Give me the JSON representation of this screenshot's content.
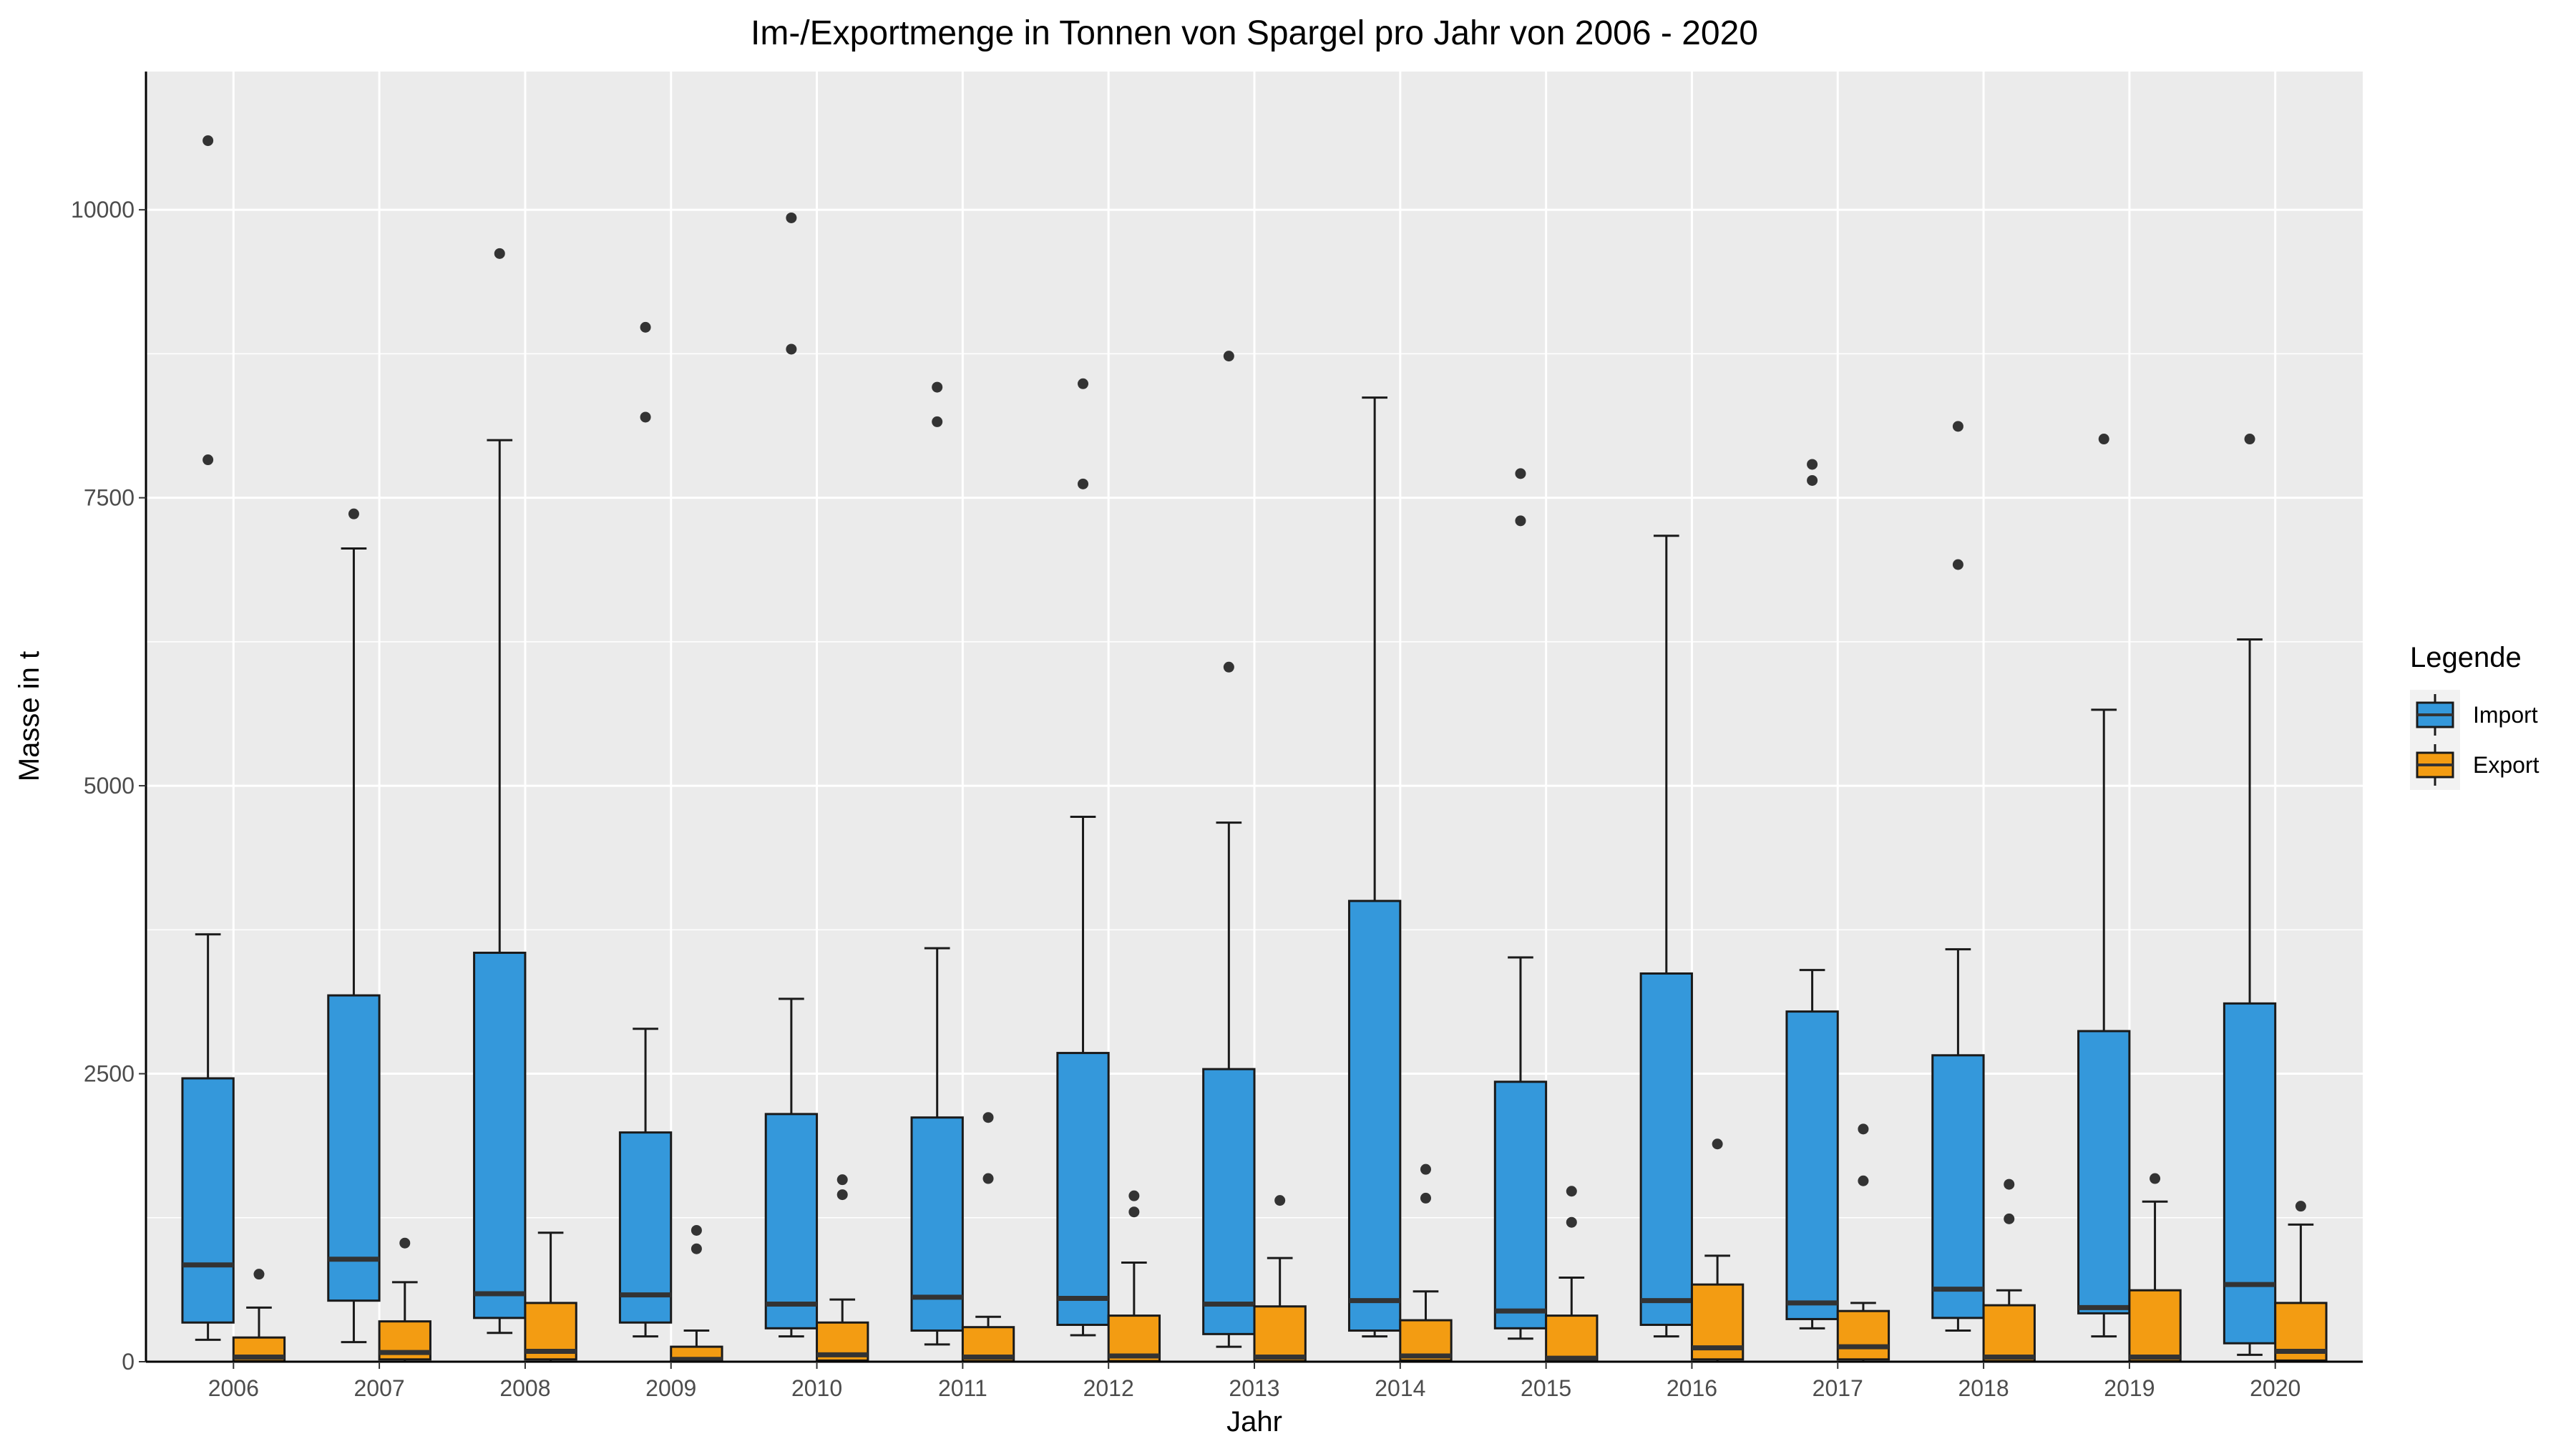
{
  "chart_data": {
    "type": "boxplot",
    "title": "Im-/Exportmenge in Tonnen von Spargel pro Jahr von 2006 - 2020",
    "xlabel": "Jahr",
    "ylabel": "Masse in t",
    "ylim": [
      0,
      11200
    ],
    "yticks": [
      0,
      2500,
      5000,
      7500,
      10000
    ],
    "ytick_labels": [
      "0",
      "2500",
      "5000",
      "7500",
      "10000"
    ],
    "grid": true,
    "panel_background": "#ebebeb",
    "legend": {
      "title": "Legende",
      "position": "right",
      "entries": [
        {
          "label": "Import",
          "color": "#3498db"
        },
        {
          "label": "Export",
          "color": "#f39c12"
        }
      ]
    },
    "categories": [
      "2006",
      "2007",
      "2008",
      "2009",
      "2010",
      "2011",
      "2012",
      "2013",
      "2014",
      "2015",
      "2016",
      "2017",
      "2018",
      "2019",
      "2020"
    ],
    "series": [
      {
        "name": "Import",
        "color": "#3498db",
        "boxes": [
          {
            "whisker_low": 190,
            "q1": 340,
            "median": 840,
            "q3": 2460,
            "whisker_high": 3710,
            "outliers": [
              7830,
              10600
            ]
          },
          {
            "whisker_low": 170,
            "q1": 530,
            "median": 890,
            "q3": 3180,
            "whisker_high": 7060,
            "outliers": [
              7360
            ]
          },
          {
            "whisker_low": 250,
            "q1": 380,
            "median": 590,
            "q3": 3550,
            "whisker_high": 8000,
            "outliers": [
              9620
            ]
          },
          {
            "whisker_low": 220,
            "q1": 340,
            "median": 580,
            "q3": 1990,
            "whisker_high": 2890,
            "outliers": [
              8200,
              8980
            ]
          },
          {
            "whisker_low": 220,
            "q1": 290,
            "median": 500,
            "q3": 2150,
            "whisker_high": 3150,
            "outliers": [
              8790,
              9930
            ]
          },
          {
            "whisker_low": 150,
            "q1": 270,
            "median": 560,
            "q3": 2120,
            "whisker_high": 3590,
            "outliers": [
              8160,
              8460
            ]
          },
          {
            "whisker_low": 230,
            "q1": 320,
            "median": 550,
            "q3": 2680,
            "whisker_high": 4730,
            "outliers": [
              7620,
              8490
            ]
          },
          {
            "whisker_low": 130,
            "q1": 240,
            "median": 500,
            "q3": 2540,
            "whisker_high": 4680,
            "outliers": [
              6030,
              8730
            ]
          },
          {
            "whisker_low": 220,
            "q1": 270,
            "median": 530,
            "q3": 4000,
            "whisker_high": 8370,
            "outliers": []
          },
          {
            "whisker_low": 200,
            "q1": 290,
            "median": 440,
            "q3": 2430,
            "whisker_high": 3510,
            "outliers": [
              7300,
              7710
            ]
          },
          {
            "whisker_low": 220,
            "q1": 320,
            "median": 530,
            "q3": 3370,
            "whisker_high": 7170,
            "outliers": []
          },
          {
            "whisker_low": 290,
            "q1": 370,
            "median": 510,
            "q3": 3040,
            "whisker_high": 3400,
            "outliers": [
              7650,
              7790
            ]
          },
          {
            "whisker_low": 270,
            "q1": 380,
            "median": 630,
            "q3": 2660,
            "whisker_high": 3580,
            "outliers": [
              6920,
              8120
            ]
          },
          {
            "whisker_low": 220,
            "q1": 420,
            "median": 470,
            "q3": 2870,
            "whisker_high": 5660,
            "outliers": [
              8010
            ]
          },
          {
            "whisker_low": 60,
            "q1": 160,
            "median": 670,
            "q3": 3110,
            "whisker_high": 6270,
            "outliers": [
              8010
            ]
          }
        ]
      },
      {
        "name": "Export",
        "color": "#f39c12",
        "boxes": [
          {
            "whisker_low": 0,
            "q1": 5,
            "median": 40,
            "q3": 210,
            "whisker_high": 470,
            "outliers": [
              760
            ]
          },
          {
            "whisker_low": 0,
            "q1": 20,
            "median": 80,
            "q3": 350,
            "whisker_high": 690,
            "outliers": [
              1030
            ]
          },
          {
            "whisker_low": 0,
            "q1": 20,
            "median": 90,
            "q3": 510,
            "whisker_high": 1120,
            "outliers": []
          },
          {
            "whisker_low": 0,
            "q1": 5,
            "median": 20,
            "q3": 130,
            "whisker_high": 270,
            "outliers": [
              980,
              1140
            ]
          },
          {
            "whisker_low": 0,
            "q1": 10,
            "median": 60,
            "q3": 340,
            "whisker_high": 540,
            "outliers": [
              1450,
              1580
            ]
          },
          {
            "whisker_low": 0,
            "q1": 5,
            "median": 40,
            "q3": 300,
            "whisker_high": 390,
            "outliers": [
              1590,
              2120
            ]
          },
          {
            "whisker_low": 0,
            "q1": 5,
            "median": 50,
            "q3": 400,
            "whisker_high": 860,
            "outliers": [
              1300,
              1440
            ]
          },
          {
            "whisker_low": 0,
            "q1": 5,
            "median": 40,
            "q3": 480,
            "whisker_high": 900,
            "outliers": [
              1400
            ]
          },
          {
            "whisker_low": 0,
            "q1": 10,
            "median": 50,
            "q3": 360,
            "whisker_high": 610,
            "outliers": [
              1420,
              1670
            ]
          },
          {
            "whisker_low": 0,
            "q1": 5,
            "median": 30,
            "q3": 400,
            "whisker_high": 730,
            "outliers": [
              1210,
              1480
            ]
          },
          {
            "whisker_low": 0,
            "q1": 20,
            "median": 120,
            "q3": 670,
            "whisker_high": 920,
            "outliers": [
              1890
            ]
          },
          {
            "whisker_low": 0,
            "q1": 20,
            "median": 130,
            "q3": 440,
            "whisker_high": 510,
            "outliers": [
              1570,
              2020
            ]
          },
          {
            "whisker_low": 0,
            "q1": 5,
            "median": 40,
            "q3": 490,
            "whisker_high": 620,
            "outliers": [
              1240,
              1540
            ]
          },
          {
            "whisker_low": 0,
            "q1": 5,
            "median": 40,
            "q3": 620,
            "whisker_high": 1390,
            "outliers": [
              1590
            ]
          },
          {
            "whisker_low": 0,
            "q1": 10,
            "median": 90,
            "q3": 510,
            "whisker_high": 1190,
            "outliers": [
              1350
            ]
          }
        ]
      }
    ]
  }
}
